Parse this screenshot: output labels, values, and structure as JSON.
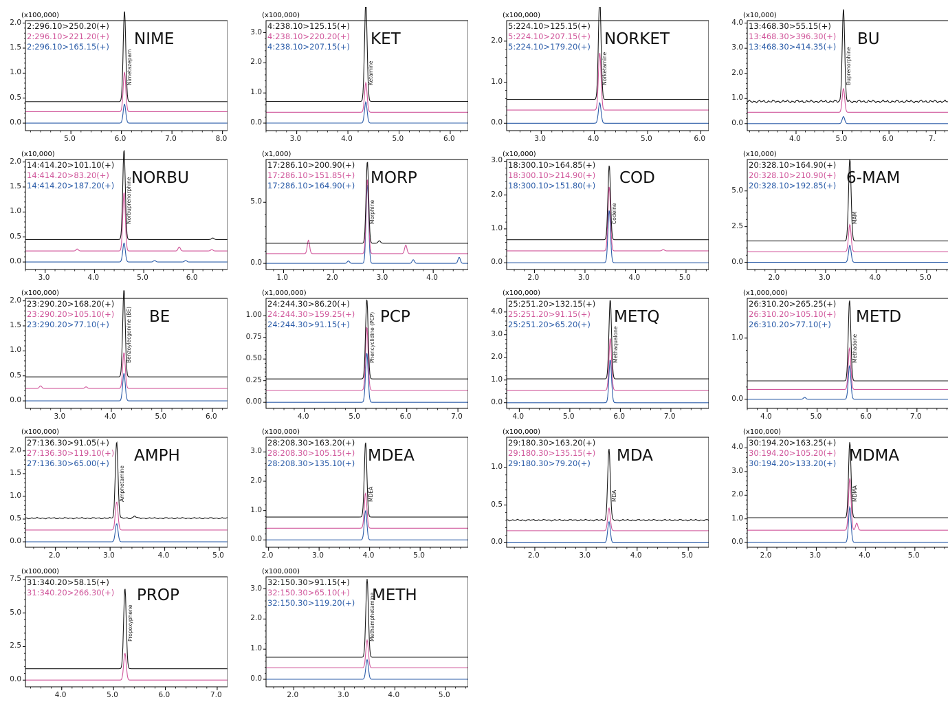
{
  "colors": {
    "ch1": "#1a1a1a",
    "ch2": "#d0579b",
    "ch3": "#2b5ca8",
    "axis": "#000000"
  },
  "chart_data": [
    {
      "type": "line",
      "abbr": "NIME",
      "compound": "Nimetazepam",
      "scale": "(x100,000)",
      "transitions": [
        "2:296.10>250.20(+)",
        "2:296.10>221.20(+)",
        "2:296.10>165.15(+)"
      ],
      "x_ticks": [
        "5.0",
        "6.0",
        "7.0",
        "8.0"
      ],
      "x_tick_values": [
        5,
        6,
        7,
        8
      ],
      "xlim": [
        4.1,
        8.1
      ],
      "y_ticks": [
        "0.0",
        "0.5",
        "1.0",
        "1.5",
        "2.0"
      ],
      "y_tick_values": [
        0,
        0.5,
        1,
        1.5,
        2
      ],
      "ylim": [
        -0.15,
        2.05
      ],
      "peak_rt": 6.06,
      "baselines": [
        0.43,
        0.23,
        0.0
      ],
      "peak_heights": [
        1.82,
        0.79,
        0.38
      ],
      "noise": [
        0,
        0,
        0
      ],
      "extra_peaks": []
    },
    {
      "type": "line",
      "abbr": "KET",
      "compound": "Ketamine",
      "scale": "(x100,000)",
      "transitions": [
        "4:238.10>125.15(+)",
        "4:238.10>220.20(+)",
        "4:238.10>207.15(+)"
      ],
      "x_ticks": [
        "3.0",
        "4.0",
        "5.0",
        "6.0"
      ],
      "x_tick_values": [
        3,
        4,
        5,
        6
      ],
      "xlim": [
        2.4,
        6.35
      ],
      "y_ticks": [
        "0.0",
        "1.0",
        "2.0",
        "3.0"
      ],
      "y_tick_values": [
        0,
        1,
        2,
        3
      ],
      "ylim": [
        -0.25,
        3.4
      ],
      "peak_rt": 4.35,
      "baselines": [
        0.72,
        0.36,
        0.0
      ],
      "peak_heights": [
        3.3,
        0.98,
        0.7
      ],
      "noise": [
        0,
        0,
        0
      ],
      "extra_peaks": []
    },
    {
      "type": "line",
      "abbr": "NORKET",
      "compound": "Norketamine",
      "scale": "(x100,000)",
      "transitions": [
        "5:224.10>125.15(+)",
        "5:224.10>207.15(+)",
        "5:224.10>179.20(+)"
      ],
      "x_ticks": [
        "3.0",
        "4.0",
        "5.0",
        "6.0"
      ],
      "x_tick_values": [
        3,
        4,
        5,
        6
      ],
      "xlim": [
        2.35,
        6.15
      ],
      "y_ticks": [
        "0.0",
        "1.0",
        "2.0"
      ],
      "y_tick_values": [
        0,
        1,
        2
      ],
      "ylim": [
        -0.18,
        2.5
      ],
      "peak_rt": 4.1,
      "baselines": [
        0.58,
        0.32,
        0.0
      ],
      "peak_heights": [
        2.48,
        1.4,
        0.5
      ],
      "noise": [
        0,
        0,
        0
      ],
      "extra_peaks": []
    },
    {
      "type": "line",
      "abbr": "BU",
      "compound": "Buprenorphine",
      "scale": "(x10,000)",
      "transitions": [
        "13:468.30>55.15(+)",
        "13:468.30>396.30(+)",
        "13:468.30>414.35(+)"
      ],
      "x_ticks": [
        "4.0",
        "5.0",
        "6.0",
        "7."
      ],
      "x_tick_values": [
        4,
        5,
        6,
        7
      ],
      "xlim": [
        2.95,
        7.3
      ],
      "y_ticks": [
        "0.0",
        "1.0",
        "2.0",
        "3.0",
        "4.0"
      ],
      "y_tick_values": [
        0,
        1,
        2,
        3,
        4
      ],
      "ylim": [
        -0.28,
        4.1
      ],
      "peak_rt": 5.02,
      "baselines": [
        0.88,
        0.45,
        0.0
      ],
      "peak_heights": [
        3.72,
        0.95,
        0.28
      ],
      "noise": [
        0.03,
        0,
        0
      ],
      "extra_peaks": []
    },
    {
      "type": "line",
      "abbr": "NORBU",
      "compound": "Norbuprenorphine",
      "scale": "(x10,000)",
      "transitions": [
        "14:414.20>101.10(+)",
        "14:414.20>83.20(+)",
        "14:414.20>187.20(+)"
      ],
      "x_ticks": [
        "3.0",
        "4.0",
        "5.0",
        "6.0"
      ],
      "x_tick_values": [
        3,
        4,
        5,
        6
      ],
      "xlim": [
        2.6,
        6.7
      ],
      "y_ticks": [
        "0.0",
        "0.5",
        "1.0",
        "1.5",
        "2.0"
      ],
      "y_tick_values": [
        0,
        0.5,
        1,
        1.5,
        2
      ],
      "ylim": [
        -0.15,
        2.05
      ],
      "peak_rt": 4.6,
      "baselines": [
        0.45,
        0.22,
        0.0
      ],
      "peak_heights": [
        1.8,
        1.18,
        0.38
      ],
      "noise": [
        0,
        0,
        0
      ],
      "extra_peaks": [
        [
          1,
          3.65,
          0.04
        ],
        [
          1,
          5.72,
          0.08
        ],
        [
          1,
          6.38,
          0.03
        ],
        [
          2,
          5.22,
          0.03
        ],
        [
          2,
          5.85,
          0.03
        ],
        [
          0,
          6.4,
          0.03
        ]
      ]
    },
    {
      "type": "line",
      "abbr": "MORP",
      "compound": "Morphine",
      "scale": "(x1,000)",
      "transitions": [
        "17:286.10>200.90(+)",
        "17:286.10>151.85(+)",
        "17:286.10>164.90(+)"
      ],
      "x_ticks": [
        "1.0",
        "2.0",
        "3.0",
        "4.0"
      ],
      "x_tick_values": [
        1,
        2,
        3,
        4
      ],
      "xlim": [
        0.65,
        4.7
      ],
      "y_ticks": [
        "0.0",
        "5.0"
      ],
      "y_tick_values": [
        0,
        5
      ],
      "ylim": [
        -0.5,
        8.5
      ],
      "peak_rt": 2.68,
      "baselines": [
        1.65,
        0.8,
        0.0
      ],
      "peak_heights": [
        6.7,
        6.1,
        6.5
      ],
      "noise": [
        0,
        0,
        0
      ],
      "extra_peaks": [
        [
          1,
          1.5,
          1.1
        ],
        [
          1,
          3.45,
          0.7
        ],
        [
          2,
          3.6,
          0.3
        ],
        [
          2,
          4.52,
          0.5
        ],
        [
          2,
          2.3,
          0.2
        ],
        [
          0,
          2.92,
          0.2
        ]
      ]
    },
    {
      "type": "line",
      "abbr": "COD",
      "compound": "Codeine",
      "scale": "(x10,000)",
      "transitions": [
        "18:300.10>164.85(+)",
        "18:300.10>214.90(+)",
        "18:300.10>151.80(+)"
      ],
      "x_ticks": [
        "2.0",
        "3.0",
        "4.0",
        "5.0"
      ],
      "x_tick_values": [
        2,
        3,
        4,
        5
      ],
      "xlim": [
        1.45,
        5.45
      ],
      "y_ticks": [
        "0.0",
        "1.0",
        "2.0",
        "3.0"
      ],
      "y_tick_values": [
        0,
        1,
        2,
        3
      ],
      "ylim": [
        -0.2,
        3.05
      ],
      "peak_rt": 3.48,
      "baselines": [
        0.68,
        0.35,
        0.0
      ],
      "peak_heights": [
        2.2,
        1.9,
        1.55
      ],
      "noise": [
        0,
        0,
        0
      ],
      "extra_peaks": [
        [
          1,
          4.55,
          0.04
        ]
      ]
    },
    {
      "type": "line",
      "abbr": "6-MAM",
      "compound": "MAM",
      "scale": "(x10,000)",
      "transitions": [
        "20:328.10>164.90(+)",
        "20:328.10>210.90(+)",
        "20:328.10>192.85(+)"
      ],
      "x_ticks": [
        "2.0",
        "3.0",
        "4.0",
        "5.0"
      ],
      "x_tick_values": [
        2,
        3,
        4,
        5
      ],
      "xlim": [
        1.45,
        5.45
      ],
      "y_ticks": [
        "0.0",
        "2.5",
        "5.0"
      ],
      "y_tick_values": [
        0,
        2.5,
        5
      ],
      "ylim": [
        -0.5,
        7.2
      ],
      "peak_rt": 3.48,
      "baselines": [
        1.5,
        0.75,
        0.0
      ],
      "peak_heights": [
        5.75,
        1.9,
        1.2
      ],
      "noise": [
        0,
        0,
        0
      ],
      "extra_peaks": []
    },
    {
      "type": "line",
      "abbr": "BE",
      "compound": "Benzoylecgonine (BE)",
      "scale": "(x100,000)",
      "transitions": [
        "23:290.20>168.20(+)",
        "23:290.20>105.10(+)",
        "23:290.20>77.10(+)"
      ],
      "x_ticks": [
        "3.0",
        "4.0",
        "5.0",
        "6.0"
      ],
      "x_tick_values": [
        3,
        4,
        5,
        6
      ],
      "xlim": [
        2.3,
        6.3
      ],
      "y_ticks": [
        "0.0",
        "0.5",
        "1.0",
        "1.5",
        "2.0"
      ],
      "y_tick_values": [
        0,
        0.5,
        1,
        1.5,
        2
      ],
      "ylim": [
        -0.15,
        2.05
      ],
      "peak_rt": 4.25,
      "baselines": [
        0.48,
        0.25,
        0.0
      ],
      "peak_heights": [
        1.75,
        0.72,
        0.55
      ],
      "noise": [
        0,
        0,
        0
      ],
      "extra_peaks": [
        [
          1,
          2.6,
          0.05
        ],
        [
          1,
          3.5,
          0.03
        ]
      ]
    },
    {
      "type": "line",
      "abbr": "PCP",
      "compound": "Phencyclidine (PCP)",
      "scale": "(x1,000,000)",
      "transitions": [
        "24:244.30>86.20(+)",
        "24:244.30>159.25(+)",
        "24:244.30>91.15(+)"
      ],
      "x_ticks": [
        "4.0",
        "5.0",
        "6.0",
        "7.0"
      ],
      "x_tick_values": [
        4,
        5,
        6,
        7
      ],
      "xlim": [
        3.25,
        7.2
      ],
      "y_ticks": [
        "0.00",
        "0.25",
        "0.50",
        "0.75",
        "1.00"
      ],
      "y_tick_values": [
        0,
        0.25,
        0.5,
        0.75,
        1
      ],
      "ylim": [
        -0.07,
        1.2
      ],
      "peak_rt": 5.22,
      "baselines": [
        0.27,
        0.14,
        0.0
      ],
      "peak_heights": [
        0.92,
        0.73,
        0.57
      ],
      "noise": [
        0,
        0,
        0
      ],
      "extra_peaks": []
    },
    {
      "type": "line",
      "abbr": "METQ",
      "compound": "Methaqualone",
      "scale": "(x100,000)",
      "transitions": [
        "25:251.20>132.15(+)",
        "25:251.20>91.15(+)",
        "25:251.20>65.20(+)"
      ],
      "x_ticks": [
        "4.0",
        "5.0",
        "6.0",
        "7.0"
      ],
      "x_tick_values": [
        4,
        5,
        6,
        7
      ],
      "xlim": [
        3.75,
        7.75
      ],
      "y_ticks": [
        "0.0",
        "1.0",
        "2.0",
        "3.0",
        "4.0"
      ],
      "y_tick_values": [
        0,
        1,
        2,
        3,
        4
      ],
      "ylim": [
        -0.25,
        4.6
      ],
      "peak_rt": 5.8,
      "baselines": [
        1.05,
        0.55,
        0.0
      ],
      "peak_heights": [
        3.5,
        2.3,
        1.9
      ],
      "noise": [
        0,
        0,
        0
      ],
      "extra_peaks": []
    },
    {
      "type": "line",
      "abbr": "METD",
      "compound": "Methadone",
      "scale": "(x1,000,000)",
      "transitions": [
        "26:310.20>265.25(+)",
        "26:310.20>105.10(+)",
        "26:310.20>77.10(+)"
      ],
      "x_ticks": [
        "4.0",
        "5.0",
        "6.0",
        "7.0"
      ],
      "x_tick_values": [
        4,
        5,
        6,
        7
      ],
      "xlim": [
        3.6,
        7.65
      ],
      "y_ticks": [
        "0.0",
        "1.0"
      ],
      "y_tick_values": [
        0,
        1
      ],
      "ylim": [
        -0.15,
        1.65
      ],
      "peak_rt": 5.65,
      "baselines": [
        0.3,
        0.16,
        0.0
      ],
      "peak_heights": [
        1.32,
        0.68,
        0.55
      ],
      "noise": [
        0,
        0,
        0
      ],
      "extra_peaks": [
        [
          2,
          4.75,
          0.03
        ]
      ]
    },
    {
      "type": "line",
      "abbr": "AMPH",
      "compound": "Amphetamine",
      "scale": "(x100,000)",
      "transitions": [
        "27:136.30>91.05(+)",
        "27:136.30>119.10(+)",
        "27:136.30>65.00(+)"
      ],
      "x_ticks": [
        "2.0",
        "3.0",
        "4.0",
        "5.0"
      ],
      "x_tick_values": [
        2,
        3,
        4,
        5
      ],
      "xlim": [
        1.45,
        5.15
      ],
      "y_ticks": [
        "0.0",
        "0.5",
        "1.0",
        "1.5",
        "2.0"
      ],
      "y_tick_values": [
        0,
        0.5,
        1,
        1.5,
        2
      ],
      "ylim": [
        -0.12,
        2.3
      ],
      "peak_rt": 3.12,
      "baselines": [
        0.52,
        0.26,
        0.0
      ],
      "peak_heights": [
        1.68,
        0.62,
        0.4
      ],
      "noise": [
        0.008,
        0,
        0
      ],
      "extra_peaks": [
        [
          0,
          3.45,
          0.05
        ]
      ]
    },
    {
      "type": "line",
      "abbr": "MDEA",
      "compound": "MDEA",
      "scale": "(x100,000)",
      "transitions": [
        "28:208.30>163.20(+)",
        "28:208.30>105.15(+)",
        "28:208.30>135.10(+)"
      ],
      "x_ticks": [
        "2.0",
        "3.0",
        "4.0",
        "5.0"
      ],
      "x_tick_values": [
        2,
        3,
        4,
        5
      ],
      "xlim": [
        1.95,
        5.95
      ],
      "y_ticks": [
        "0.0",
        "1.0",
        "2.0",
        "3.0"
      ],
      "y_tick_values": [
        0,
        1,
        2,
        3
      ],
      "ylim": [
        -0.25,
        3.5
      ],
      "peak_rt": 3.92,
      "baselines": [
        0.78,
        0.4,
        0.0
      ],
      "peak_heights": [
        2.55,
        1.2,
        1.0
      ],
      "noise": [
        0,
        0,
        0
      ],
      "extra_peaks": []
    },
    {
      "type": "line",
      "abbr": "MDA",
      "compound": "MDA",
      "scale": "(x100,000)",
      "transitions": [
        "29:180.30>163.20(+)",
        "29:180.30>135.15(+)",
        "29:180.30>79.20(+)"
      ],
      "x_ticks": [
        "2.0",
        "3.0",
        "4.0",
        "5.0"
      ],
      "x_tick_values": [
        2,
        3,
        4,
        5
      ],
      "xlim": [
        1.45,
        5.4
      ],
      "y_ticks": [
        "0.0",
        "0.5",
        "1.0"
      ],
      "y_tick_values": [
        0,
        0.5,
        1
      ],
      "ylim": [
        -0.06,
        1.4
      ],
      "peak_rt": 3.45,
      "baselines": [
        0.3,
        0.16,
        0.0
      ],
      "peak_heights": [
        0.95,
        0.3,
        0.28
      ],
      "noise": [
        0.006,
        0,
        0
      ],
      "extra_peaks": []
    },
    {
      "type": "line",
      "abbr": "MDMA",
      "compound": "MDMA",
      "scale": "(x100,000)",
      "transitions": [
        "30:194.20>163.25(+)",
        "30:194.20>105.20(+)",
        "30:194.20>133.20(+)"
      ],
      "x_ticks": [
        "2.0",
        "3.0",
        "4.0",
        "5.0"
      ],
      "x_tick_values": [
        2,
        3,
        4,
        5
      ],
      "xlim": [
        1.6,
        5.7
      ],
      "y_ticks": [
        "0.0",
        "1.0",
        "2.0",
        "3.0",
        "4.0"
      ],
      "y_tick_values": [
        0,
        1,
        2,
        3,
        4
      ],
      "ylim": [
        -0.2,
        4.45
      ],
      "peak_rt": 3.68,
      "baselines": [
        1.05,
        0.52,
        0.0
      ],
      "peak_heights": [
        3.2,
        2.2,
        1.5
      ],
      "noise": [
        0,
        0,
        0
      ],
      "extra_peaks": [
        [
          1,
          3.82,
          0.3
        ]
      ]
    },
    {
      "type": "line",
      "abbr": "PROP",
      "compound": "Propoxyphene",
      "scale": "(x100,000)",
      "transitions": [
        "31:340.20>58.15(+)",
        "31:340.20>266.30(+)"
      ],
      "x_ticks": [
        "4.0",
        "5.0",
        "6.0",
        "7.0"
      ],
      "x_tick_values": [
        4,
        5,
        6,
        7
      ],
      "xlim": [
        3.3,
        7.2
      ],
      "y_ticks": [
        "0.0",
        "2.5",
        "5.0",
        "7.5"
      ],
      "y_tick_values": [
        0,
        2.5,
        5,
        7.5
      ],
      "ylim": [
        -0.5,
        7.7
      ],
      "peak_rt": 5.22,
      "baselines": [
        0.85,
        0.0
      ],
      "peak_heights": [
        6.0,
        2.0
      ],
      "noise": [
        0,
        0
      ],
      "extra_peaks": []
    },
    {
      "type": "line",
      "abbr": "METH",
      "compound": "Methamphetamine",
      "scale": "(x100,000)",
      "transitions": [
        "32:150.30>91.15(+)",
        "32:150.30>65.10(+)",
        "32:150.30>119.20(+)"
      ],
      "x_ticks": [
        "2.0",
        "3.0",
        "4.0",
        "5.0"
      ],
      "x_tick_values": [
        2,
        3,
        4,
        5
      ],
      "xlim": [
        1.45,
        5.45
      ],
      "y_ticks": [
        "0.0",
        "1.0",
        "2.0",
        "3.0"
      ],
      "y_tick_values": [
        0,
        1,
        2,
        3
      ],
      "ylim": [
        -0.25,
        3.4
      ],
      "peak_rt": 3.45,
      "baselines": [
        0.73,
        0.38,
        0.0
      ],
      "peak_heights": [
        2.6,
        0.92,
        0.65
      ],
      "noise": [
        0,
        0,
        0
      ],
      "extra_peaks": []
    }
  ]
}
